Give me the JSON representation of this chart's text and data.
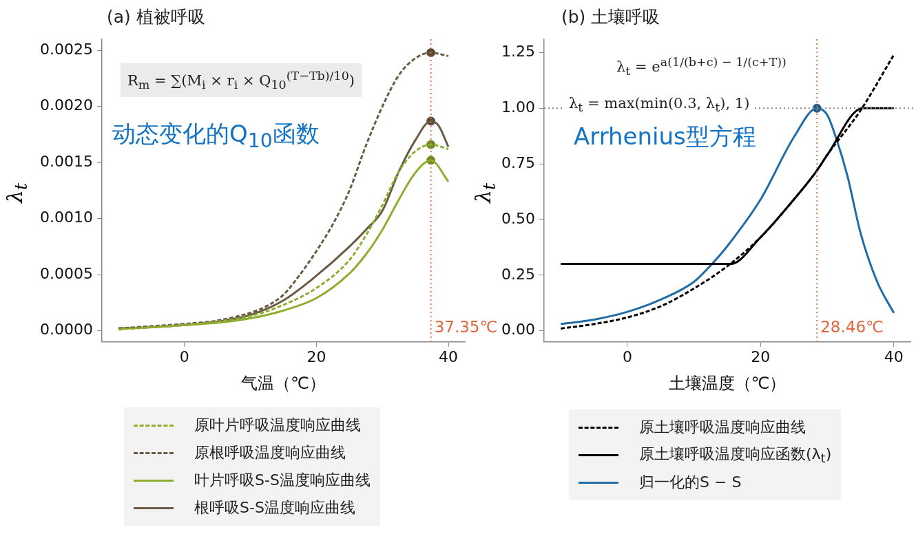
{
  "chart_data": [
    {
      "type": "line",
      "title": "(a) 植被呼吸",
      "xlabel": "气温（℃）",
      "ylabel": "λ$_{t}$",
      "xlim": [
        -12.5,
        42.5
      ],
      "xticks": [
        0,
        20,
        40
      ],
      "ylim": [
        -0.0001,
        0.0026
      ],
      "yticks": [
        {
          "value": 0,
          "label": "0.0000"
        },
        {
          "value": 0.0005,
          "label": "0.0005"
        },
        {
          "value": 0.001,
          "label": "0.0010"
        },
        {
          "value": 0.0015,
          "label": "0.0015"
        },
        {
          "value": 0.002,
          "label": "0.0020"
        },
        {
          "value": 0.0025,
          "label": "0.0025"
        }
      ],
      "legend": "bottom",
      "series": [
        {
          "name": "原叶片呼吸温度响应曲线",
          "color": "#8fae2f",
          "line_style": "dashed",
          "x": [
            -10,
            -5,
            0,
            5,
            10,
            15,
            20,
            25,
            27.5,
            30,
            32.5,
            35,
            37.35,
            40
          ],
          "values": [
            1e-05,
            3e-05,
            5e-05,
            8e-05,
            0.00013,
            0.00023,
            0.00038,
            0.00063,
            0.00085,
            0.00112,
            0.00142,
            0.0016,
            0.00166,
            0.00162
          ]
        },
        {
          "name": "原根呼吸温度响应曲线",
          "color": "#6b5a44",
          "line_style": "dashed",
          "x": [
            -10,
            -5,
            0,
            5,
            10,
            12.5,
            15,
            17.5,
            20,
            22.5,
            25,
            27.5,
            30,
            32.5,
            35,
            37.35,
            40
          ],
          "values": [
            2e-05,
            4e-05,
            6e-05,
            9e-05,
            0.00016,
            0.00022,
            0.00032,
            0.0005,
            0.00071,
            0.00095,
            0.00125,
            0.00165,
            0.002,
            0.00228,
            0.00243,
            0.00248,
            0.00245
          ]
        },
        {
          "name": "叶片呼吸S-S温度响应曲线",
          "color": "#8fae2f",
          "line_style": "solid",
          "x": [
            -10,
            -5,
            0,
            5,
            10,
            15,
            20,
            25,
            27.5,
            30,
            32.5,
            35,
            37.35,
            40
          ],
          "values": [
            2e-05,
            3e-05,
            5e-05,
            7e-05,
            0.00011,
            0.00018,
            0.00029,
            0.00051,
            0.00068,
            0.0009,
            0.00117,
            0.00141,
            0.00152,
            0.00133
          ]
        },
        {
          "name": "根呼吸S-S温度响应曲线",
          "color": "#6b5a44",
          "line_style": "solid",
          "x": [
            -10,
            -5,
            0,
            5,
            10,
            15,
            20,
            25,
            27.5,
            30,
            32.5,
            35,
            37.35,
            38.5,
            40
          ],
          "values": [
            2e-05,
            3e-05,
            5e-05,
            8e-05,
            0.00014,
            0.00027,
            0.00049,
            0.00075,
            0.0009,
            0.00107,
            0.00142,
            0.0017,
            0.00187,
            0.00183,
            0.00164
          ]
        },
        {
          "type": "scatter",
          "marker": "circle",
          "x": [
            37.35,
            37.35,
            37.35,
            37.35
          ],
          "values": [
            0.00166,
            0.00248,
            0.00152,
            0.00187
          ],
          "colors": [
            "#6b8a22",
            "#5a4a36",
            "#6b8a22",
            "#5a4a36"
          ]
        }
      ],
      "ref_lines": [
        {
          "axis": "x",
          "value": 37.35,
          "label": "37.35℃",
          "color": "#e0673d",
          "line_style": "dotted"
        }
      ],
      "annotations": [
        "R$_{m}$ = ∑(M$_{i}$ × r$_{i}$ × Q$_{10}$$^{(T−Tb)/10}$)",
        "动态变化的Q$_{10}$函数"
      ]
    },
    {
      "type": "line",
      "title": "(b) 土壤呼吸",
      "xlabel": "土壤温度（℃）",
      "ylabel": "λ$_{t}$",
      "xlim": [
        -12.5,
        42.5
      ],
      "xticks": [
        0,
        20,
        40
      ],
      "ylim": [
        -0.05,
        1.31
      ],
      "yticks": [
        {
          "value": 0,
          "label": "0.00"
        },
        {
          "value": 0.25,
          "label": "0.25"
        },
        {
          "value": 0.5,
          "label": "0.50"
        },
        {
          "value": 0.75,
          "label": "0.75"
        },
        {
          "value": 1,
          "label": "1.00"
        },
        {
          "value": 1.25,
          "label": "1.25"
        }
      ],
      "legend": "bottom",
      "series": [
        {
          "name": "原土壤呼吸温度响应曲线",
          "color": "#000000",
          "line_style": "dashed",
          "x": [
            -10,
            -5,
            0,
            5,
            10,
            15,
            20,
            25,
            28.46,
            30,
            35,
            40
          ],
          "values": [
            0.01,
            0.03,
            0.06,
            0.11,
            0.19,
            0.29,
            0.42,
            0.59,
            0.72,
            0.79,
            0.99,
            1.24
          ]
        },
        {
          "name": "原土壤呼吸温度响应函数(λ$_{t}$)",
          "color": "#000000",
          "line_style": "solid",
          "x": [
            -10,
            15.5,
            20,
            25,
            28.46,
            30,
            35.3,
            40
          ],
          "values": [
            0.3,
            0.3,
            0.42,
            0.59,
            0.72,
            0.79,
            1.0,
            1.0
          ]
        },
        {
          "name": "归一化的S − S",
          "color": "#1f6ca6",
          "line_style": "solid",
          "x": [
            -10,
            -5,
            0,
            5,
            10,
            12.7,
            15,
            20,
            25,
            28.46,
            30,
            31.4,
            33,
            35,
            37.5,
            40
          ],
          "values": [
            0.03,
            0.05,
            0.085,
            0.14,
            0.22,
            0.3,
            0.38,
            0.59,
            0.87,
            1.0,
            0.97,
            0.86,
            0.7,
            0.44,
            0.22,
            0.08
          ]
        },
        {
          "type": "scatter",
          "marker": "circle",
          "x": [
            28.46
          ],
          "values": [
            1.0
          ],
          "colors": [
            "#1a5a8c"
          ]
        }
      ],
      "ref_lines": [
        {
          "axis": "x",
          "value": 28.46,
          "label": "28.46℃",
          "color": "#e0673d",
          "line_style": "dotted"
        },
        {
          "axis": "y",
          "value": 1,
          "color": "#888888",
          "line_style": "dotted"
        }
      ],
      "annotations": [
        "λ$_{t}$ = e$^{a(1/(b+c) − 1/(c+T))}$",
        "λ$_{t}$ = max(min(0.3, λ$_{t}$), 1)",
        "Arrhenius型方程"
      ]
    }
  ]
}
